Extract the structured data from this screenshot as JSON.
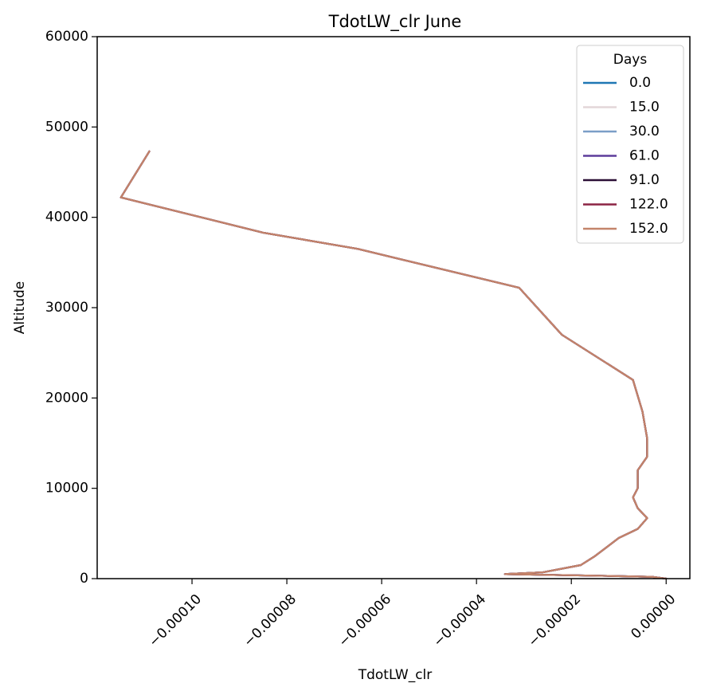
{
  "chart_data": {
    "type": "line",
    "title": "TdotLW_clr June",
    "xlabel": "TdotLW_clr",
    "ylabel": "Altitude",
    "xlim": [
      -0.00012,
      5e-06
    ],
    "ylim": [
      0,
      60000
    ],
    "xticks": [
      -0.0001,
      -8e-05,
      -6e-05,
      -4e-05,
      -2e-05,
      0.0
    ],
    "xtick_labels": [
      "−0.00010",
      "−0.00008",
      "−0.00006",
      "−0.00004",
      "−0.00002",
      "0.00000"
    ],
    "yticks": [
      0,
      10000,
      20000,
      30000,
      40000,
      50000,
      60000
    ],
    "ytick_labels": [
      "0",
      "10000",
      "20000",
      "30000",
      "40000",
      "50000",
      "60000"
    ],
    "grid": false,
    "legend": {
      "title": "Days",
      "placement": "top-right"
    },
    "profile": {
      "x": [
        0.0,
        -3e-06,
        -1.2e-05,
        -3.4e-05,
        -2.6e-05,
        -1.8e-05,
        -1.5e-05,
        -1e-05,
        -6e-06,
        -4e-06,
        -6e-06,
        -7e-06,
        -6e-06,
        -6e-06,
        -4e-06,
        -4e-06,
        -5e-06,
        -7e-06,
        -2.2e-05,
        -3.1e-05,
        -6.5e-05,
        -8.5e-05,
        -0.000115,
        -0.000109
      ],
      "y": [
        0,
        200,
        300,
        500,
        700,
        1500,
        2500,
        4500,
        5500,
        6700,
        7800,
        9000,
        10000,
        12000,
        13500,
        15500,
        18500,
        22000,
        27000,
        32200,
        36500,
        38300,
        42200,
        47300
      ]
    },
    "series": [
      {
        "name": "0.0",
        "color": "#1f77b4"
      },
      {
        "name": "15.0",
        "color": "#e3d6d9"
      },
      {
        "name": "30.0",
        "color": "#7b9ec7"
      },
      {
        "name": "61.0",
        "color": "#5d3d9b"
      },
      {
        "name": "91.0",
        "color": "#2b0f36"
      },
      {
        "name": "122.0",
        "color": "#8c2443"
      },
      {
        "name": "152.0",
        "color": "#c4846a"
      }
    ]
  }
}
